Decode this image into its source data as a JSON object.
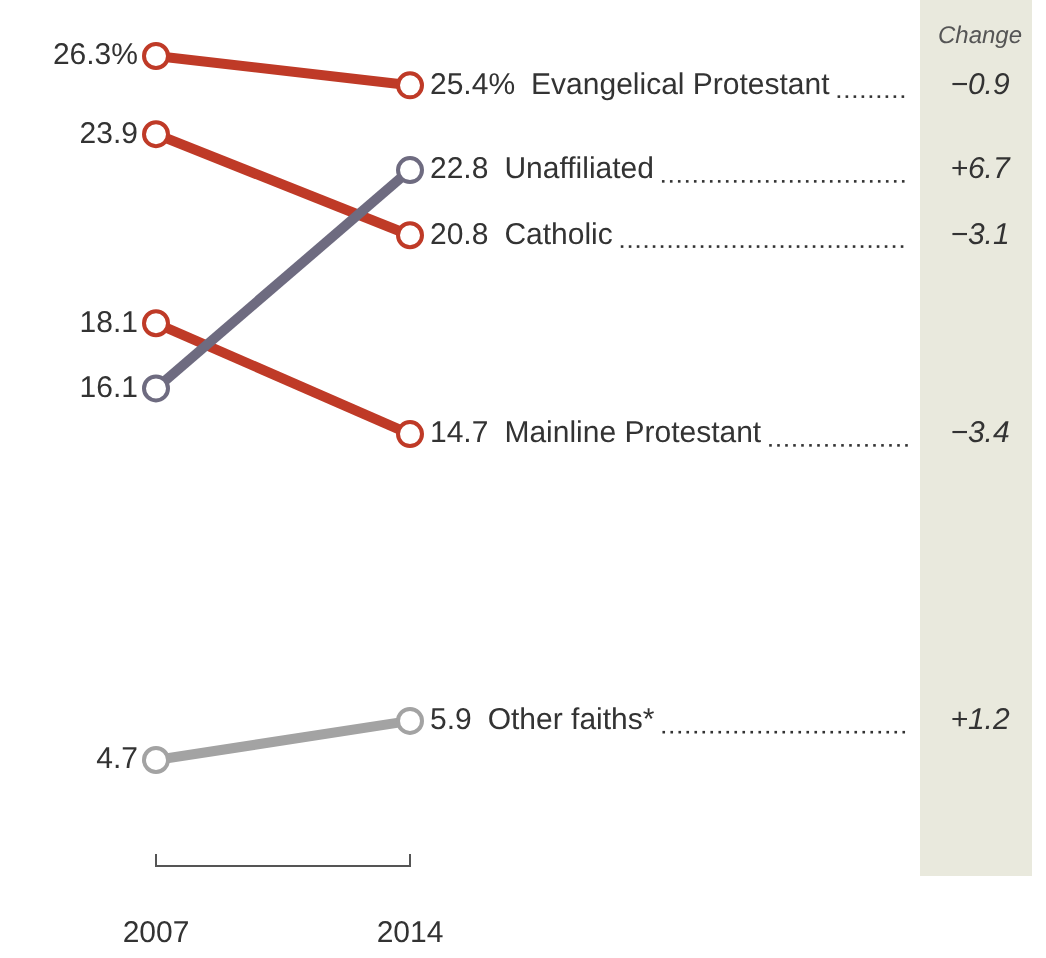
{
  "chart_data": {
    "type": "line",
    "categories": [
      "2007",
      "2014"
    ],
    "series": [
      {
        "name": "Evangelical Protestant",
        "color": "#bf3a27",
        "values": [
          26.3,
          25.4
        ],
        "value_labels": [
          "26.3%",
          "25.4%"
        ]
      },
      {
        "name": "Unaffiliated",
        "color": "#6e6b80",
        "values": [
          16.1,
          22.8
        ],
        "value_labels": [
          "16.1",
          "22.8"
        ]
      },
      {
        "name": "Catholic",
        "color": "#bf3a27",
        "values": [
          23.9,
          20.8
        ],
        "value_labels": [
          "23.9",
          "20.8"
        ]
      },
      {
        "name": "Mainline Protestant",
        "color": "#bf3a27",
        "values": [
          18.1,
          14.7
        ],
        "value_labels": [
          "18.1",
          "14.7"
        ]
      },
      {
        "name": "Other faiths*",
        "color": "#a3a3a3",
        "values": [
          4.7,
          5.9
        ],
        "value_labels": [
          "4.7",
          "5.9"
        ]
      }
    ],
    "annotations": [
      "Change",
      "−0.9",
      "+6.7",
      "−3.1",
      "−3.4",
      "+1.2"
    ],
    "marker": "circle",
    "line_style": "solid",
    "legend": false
  }
}
